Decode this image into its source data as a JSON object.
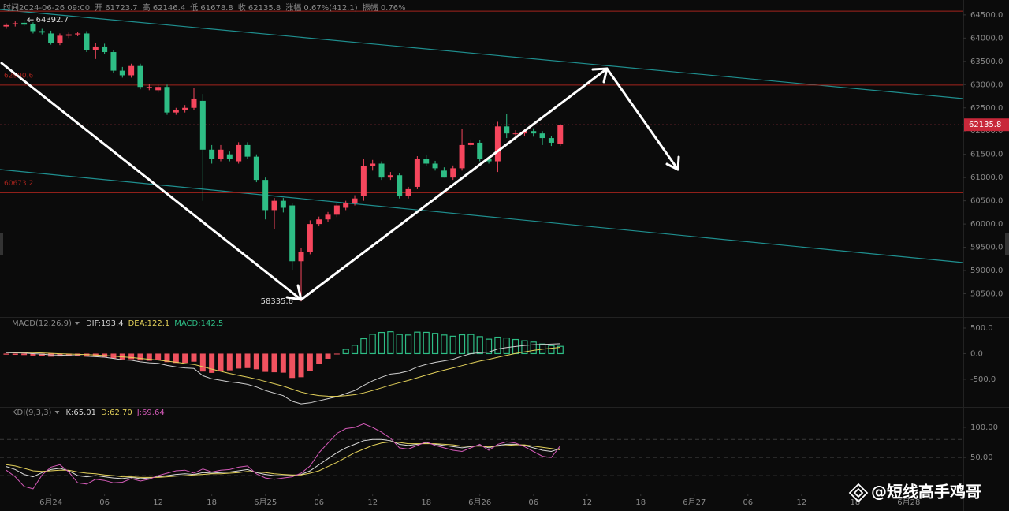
{
  "chart_data": [
    {
      "type": "candlestick",
      "readout": [
        "时间2024-06-26 09:00",
        "开 61723.7",
        "高 62146.4",
        "低 61678.8",
        "收 62135.8",
        "涨幅 0.67%(412.1)",
        "振幅 0.76%"
      ],
      "open": [
        64250,
        64300,
        64330,
        64300,
        64150,
        64100,
        63900,
        64050,
        64080,
        64100,
        63750,
        63820,
        63700,
        63300,
        63200,
        63400,
        62950,
        62880,
        62950,
        62400,
        62450,
        62500,
        62650,
        61600,
        61400,
        61500,
        61350,
        61700,
        61450,
        60950,
        60300,
        60500,
        60400,
        59200,
        59400,
        60000,
        60100,
        60200,
        60350,
        60450,
        60600,
        61250,
        61300,
        61000,
        61050,
        60600,
        60800,
        61400,
        61300,
        61150,
        61000,
        61200,
        61700,
        61750,
        61400,
        61350,
        62100,
        61950,
        61950,
        62000,
        61950,
        61850,
        61723.7
      ],
      "high": [
        64320,
        64360,
        64392.7,
        64340,
        64200,
        64160,
        64100,
        64120,
        64140,
        64150,
        63900,
        63880,
        63750,
        63380,
        63450,
        63450,
        63020,
        63000,
        63000,
        62500,
        62560,
        62920,
        62800,
        61700,
        61700,
        61560,
        61760,
        61760,
        61500,
        61000,
        60560,
        60560,
        60460,
        59480,
        60080,
        60160,
        60260,
        60460,
        60500,
        60620,
        61400,
        61380,
        61350,
        61120,
        61100,
        60800,
        61460,
        61480,
        61360,
        61220,
        61260,
        62050,
        61820,
        61800,
        61450,
        62200,
        62360,
        62020,
        62050,
        62060,
        62000,
        61900,
        62146.4
      ],
      "low": [
        64200,
        64250,
        64260,
        64100,
        64080,
        63860,
        63850,
        64000,
        64040,
        63700,
        63550,
        63650,
        63250,
        63150,
        63150,
        62900,
        62880,
        62830,
        62350,
        62350,
        62400,
        62450,
        60500,
        61300,
        61350,
        61350,
        61300,
        61400,
        60900,
        60100,
        59900,
        60250,
        59000,
        58335.6,
        59350,
        59950,
        60050,
        60150,
        60300,
        60400,
        60500,
        61150,
        60950,
        60950,
        60550,
        60550,
        60750,
        61250,
        61150,
        61000,
        60950,
        61150,
        61650,
        61350,
        61300,
        61120,
        61850,
        61880,
        61900,
        61880,
        61700,
        61680,
        61678.8
      ],
      "close": [
        64280,
        64320,
        64290,
        64150,
        64120,
        63900,
        64050,
        64080,
        64100,
        63750,
        63820,
        63700,
        63300,
        63200,
        63400,
        62950,
        62950,
        62950,
        62400,
        62450,
        62500,
        62700,
        61600,
        61400,
        61600,
        61400,
        61700,
        61450,
        60950,
        60300,
        60500,
        60350,
        59200,
        59400,
        60000,
        60100,
        60200,
        60400,
        60450,
        60550,
        61250,
        61300,
        61000,
        61050,
        60600,
        60750,
        61400,
        61300,
        61200,
        61000,
        61200,
        61700,
        61750,
        61400,
        61350,
        62100,
        61950,
        61950,
        62000,
        61950,
        61850,
        61750,
        62135.8
      ],
      "up_color": "#f6465d",
      "down_color": "#2ebd85",
      "ylim": [
        58000,
        64820
      ],
      "yticks": [
        {
          "value": 58500,
          "label": "58500.0"
        },
        {
          "value": 59000,
          "label": "59000.0"
        },
        {
          "value": 59500,
          "label": "59500.0"
        },
        {
          "value": 60000,
          "label": "60000.0"
        },
        {
          "value": 60500,
          "label": "60500.0"
        },
        {
          "value": 61000,
          "label": "61000.0"
        },
        {
          "value": 61500,
          "label": "61500.0"
        },
        {
          "value": 62000,
          "label": "62000.0"
        },
        {
          "value": 62500,
          "label": "62500.0"
        },
        {
          "value": 63000,
          "label": "63000.0"
        },
        {
          "value": 63500,
          "label": "63500.0"
        },
        {
          "value": 64000,
          "label": "64000.0"
        },
        {
          "value": 64500,
          "label": "64500.0"
        }
      ],
      "xlim": [
        -0.7,
        107.1
      ],
      "xticks": [
        {
          "value": 5,
          "label": "6月24"
        },
        {
          "value": 11,
          "label": "06"
        },
        {
          "value": 17,
          "label": "12"
        },
        {
          "value": 23,
          "label": "18"
        },
        {
          "value": 29,
          "label": "6月25"
        },
        {
          "value": 35,
          "label": "06"
        },
        {
          "value": 41,
          "label": "12"
        },
        {
          "value": 47,
          "label": "18"
        },
        {
          "value": 53,
          "label": "6月26"
        },
        {
          "value": 59,
          "label": "06"
        },
        {
          "value": 65,
          "label": "12"
        },
        {
          "value": 71,
          "label": "18"
        },
        {
          "value": 77,
          "label": "6月27"
        },
        {
          "value": 83,
          "label": "06"
        },
        {
          "value": 89,
          "label": "12"
        },
        {
          "value": 95,
          "label": "18"
        },
        {
          "value": 101,
          "label": "6月28"
        }
      ],
      "price_lines": [
        {
          "value": 64580,
          "color": "#a3231c"
        },
        {
          "value": 62990.6,
          "label": "62990.6",
          "color": "#a3231c"
        },
        {
          "value": 60673.2,
          "label": "60673.2",
          "color": "#a3231c"
        }
      ]
    },
    {
      "type": "macd",
      "title": "MACD(12,26,9)",
      "ylim": [
        -1040,
        700
      ],
      "yticks": [
        {
          "value": 500,
          "label": "500.0"
        },
        {
          "value": 0,
          "label": "0.0"
        },
        {
          "value": -500,
          "label": "-500.0"
        }
      ],
      "series": [
        {
          "name": "DIF",
          "label": "DIF:193.4",
          "type": "line",
          "color": "#cfcfcf",
          "values": [
            20,
            15,
            10,
            0,
            -10,
            -25,
            -30,
            -35,
            -40,
            -50,
            -60,
            -70,
            -95,
            -120,
            -130,
            -160,
            -180,
            -190,
            -230,
            -260,
            -280,
            -290,
            -430,
            -490,
            -520,
            -550,
            -570,
            -600,
            -650,
            -720,
            -770,
            -820,
            -930,
            -980,
            -960,
            -920,
            -880,
            -840,
            -780,
            -720,
            -620,
            -530,
            -460,
            -400,
            -380,
            -340,
            -260,
            -210,
            -170,
            -140,
            -110,
            -50,
            0,
            20,
            30,
            90,
            120,
            140,
            160,
            175,
            180,
            185,
            193.4
          ]
        },
        {
          "name": "DEA",
          "label": "DEA:122.1",
          "type": "line",
          "color": "#e3d15a",
          "values": [
            30,
            27,
            24,
            19,
            13,
            5,
            -2,
            -8,
            -14,
            -21,
            -29,
            -37,
            -49,
            -63,
            -76,
            -93,
            -110,
            -126,
            -147,
            -169,
            -191,
            -211,
            -255,
            -302,
            -346,
            -387,
            -424,
            -459,
            -497,
            -542,
            -588,
            -634,
            -693,
            -750,
            -792,
            -818,
            -830,
            -832,
            -822,
            -802,
            -766,
            -719,
            -667,
            -614,
            -567,
            -522,
            -470,
            -418,
            -368,
            -322,
            -280,
            -234,
            -187,
            -146,
            -111,
            -71,
            -33,
            2,
            34,
            62,
            86,
            106,
            122.1
          ]
        },
        {
          "name": "MACD",
          "label": "MACD:142.5",
          "type": "bar",
          "color": "#2ebd85",
          "neg_color": "#f0525f",
          "values": [
            -20,
            -24,
            -28,
            -38,
            -46,
            -60,
            -56,
            -54,
            -52,
            -58,
            -62,
            -66,
            -92,
            -114,
            -108,
            -134,
            -140,
            -128,
            -166,
            -182,
            -178,
            -158,
            -350,
            -376,
            -348,
            -326,
            -292,
            -282,
            -306,
            -356,
            -364,
            -372,
            -474,
            -460,
            -336,
            -204,
            -100,
            -16,
            84,
            164,
            292,
            378,
            414,
            428,
            374,
            364,
            420,
            416,
            396,
            364,
            340,
            368,
            374,
            332,
            282,
            322,
            306,
            276,
            252,
            226,
            188,
            158,
            142.5
          ]
        }
      ]
    },
    {
      "type": "kdj",
      "title": "KDJ(9,3,3)",
      "ylim": [
        -10,
        134
      ],
      "yticks": [
        {
          "value": 50,
          "label": "50.00"
        },
        {
          "value": 100,
          "label": "100.00"
        }
      ],
      "levels": [
        20,
        50,
        80
      ],
      "series": [
        {
          "name": "K",
          "label": "K:65.01",
          "type": "line",
          "color": "#d9d9d9",
          "values": [
            35,
            30,
            22,
            18,
            25,
            30,
            32,
            28,
            20,
            18,
            20,
            18,
            16,
            15,
            17,
            15,
            16,
            18,
            20,
            22,
            23,
            22,
            25,
            24,
            25,
            26,
            28,
            30,
            25,
            22,
            20,
            20,
            20,
            22,
            28,
            38,
            48,
            58,
            66,
            72,
            78,
            80,
            80,
            78,
            72,
            70,
            72,
            74,
            72,
            70,
            68,
            66,
            68,
            70,
            66,
            70,
            72,
            72,
            70,
            66,
            62,
            60,
            65.01
          ]
        },
        {
          "name": "D",
          "label": "D:62.70",
          "type": "line",
          "color": "#e3d15a",
          "values": [
            38,
            36,
            32,
            28,
            27,
            28,
            29,
            29,
            26,
            24,
            23,
            21,
            20,
            18,
            18,
            17,
            17,
            17,
            18,
            19,
            20,
            21,
            22,
            23,
            23,
            24,
            25,
            27,
            26,
            25,
            23,
            22,
            21,
            21,
            24,
            28,
            35,
            42,
            50,
            58,
            64,
            70,
            74,
            76,
            75,
            73,
            73,
            73,
            73,
            72,
            71,
            69,
            69,
            69,
            68,
            69,
            70,
            71,
            71,
            69,
            67,
            65,
            62.7
          ]
        },
        {
          "name": "J",
          "label": "J:69.64",
          "type": "line",
          "color": "#d45ab8",
          "values": [
            29,
            18,
            2,
            -2,
            21,
            34,
            38,
            26,
            8,
            6,
            14,
            12,
            8,
            9,
            15,
            11,
            14,
            20,
            24,
            28,
            29,
            24,
            31,
            26,
            29,
            30,
            34,
            36,
            23,
            16,
            14,
            16,
            18,
            24,
            36,
            58,
            74,
            90,
            98,
            100,
            106,
            100,
            92,
            82,
            66,
            64,
            70,
            76,
            70,
            66,
            62,
            60,
            66,
            72,
            62,
            72,
            76,
            74,
            68,
            60,
            52,
            50,
            69.64
          ]
        }
      ]
    }
  ],
  "watermark": "@短线高手鸡哥"
}
